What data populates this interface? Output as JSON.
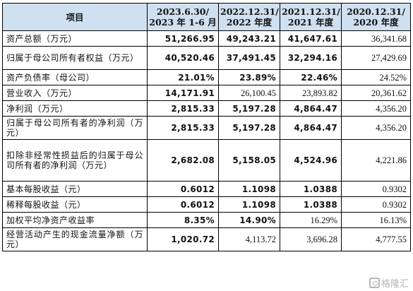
{
  "table": {
    "headers": [
      [
        "项目"
      ],
      [
        "2023.6.30/",
        "2023 年 1-6 月"
      ],
      [
        "2022.12.31/",
        "2022 年度"
      ],
      [
        "2021.12.31/",
        "2021 年度"
      ],
      [
        "2020.12.31/",
        "2020 年度"
      ]
    ],
    "rows": [
      {
        "label": "资产总额（万元）",
        "values": [
          "51,266.95",
          "49,243.21",
          "41,647.61",
          "36,341.68"
        ],
        "bold": [
          true,
          true,
          true,
          false
        ],
        "h": 1
      },
      {
        "label": "归属于母公司所有者权益（万元）",
        "values": [
          "40,520.46",
          "37,491.45",
          "32,294.16",
          "27,429.69"
        ],
        "bold": [
          true,
          true,
          true,
          false
        ],
        "h": 2
      },
      {
        "label": "资产负债率（母公司）",
        "values": [
          "21.01%",
          "23.89%",
          "22.46%",
          "24.52%"
        ],
        "bold": [
          true,
          true,
          true,
          false
        ],
        "h": 1
      },
      {
        "label": "营业收入（万元）",
        "values": [
          "14,171.91",
          "26,100.45",
          "23,893.82",
          "20,361.62"
        ],
        "bold": [
          true,
          false,
          false,
          false
        ],
        "h": 1
      },
      {
        "label": "净利润（万元）",
        "values": [
          "2,815.33",
          "5,197.28",
          "4,864.47",
          "4,356.20"
        ],
        "bold": [
          true,
          true,
          true,
          false
        ],
        "h": 1
      },
      {
        "label": "归属于母公司所有者的净利润（万元）",
        "values": [
          "2,815.33",
          "5,197.28",
          "4,864.47",
          "4,356.20"
        ],
        "bold": [
          true,
          true,
          true,
          false
        ],
        "h": 2
      },
      {
        "label": "扣除非经常性损益后的归属于母公司所有者的净利润（万元）",
        "values": [
          "2,682.08",
          "5,158.05",
          "4,524.96",
          "4,221.86"
        ],
        "bold": [
          true,
          true,
          true,
          false
        ],
        "h": 3
      },
      {
        "label": "基本每股收益（元）",
        "values": [
          "0.6012",
          "1.1098",
          "1.0388",
          "0.9302"
        ],
        "bold": [
          true,
          true,
          true,
          false
        ],
        "h": 1
      },
      {
        "label": "稀释每股收益（元）",
        "values": [
          "0.6012",
          "1.1098",
          "1.0388",
          "0.9302"
        ],
        "bold": [
          true,
          true,
          true,
          false
        ],
        "h": 1
      },
      {
        "label": "加权平均净资产收益率",
        "values": [
          "8.35%",
          "14.90%",
          "16.29%",
          "16.13%"
        ],
        "bold": [
          true,
          true,
          false,
          false
        ],
        "h": 1
      },
      {
        "label": "经营活动产生的现金流量净额（万元）",
        "values": [
          "1,020.72",
          "4,113.72",
          "3,696.28",
          "4,777.55"
        ],
        "bold": [
          true,
          false,
          false,
          false
        ],
        "h": 2
      }
    ]
  },
  "watermark": {
    "text": "格隆汇",
    "icon": "gelonghui-logo-icon"
  }
}
